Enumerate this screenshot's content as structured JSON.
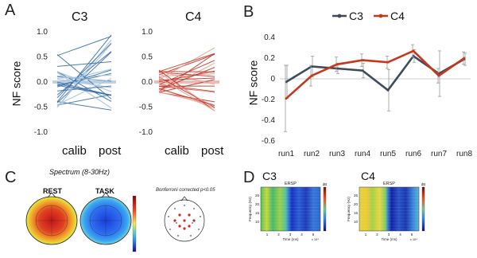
{
  "panels": {
    "a": {
      "letter": "A"
    },
    "b": {
      "letter": "B"
    },
    "c": {
      "letter": "C"
    },
    "d": {
      "letter": "D"
    }
  },
  "panel_a": {
    "ylabel": "NF score",
    "ticks": [
      "1.0",
      "0.5",
      "0.0",
      "-0.5",
      "-1.0"
    ],
    "xlabels": [
      "calib",
      "post"
    ],
    "subplots": [
      {
        "title": "C3",
        "color": "#3a6fa8",
        "light_color": "#a9c4e0"
      },
      {
        "title": "C4",
        "color": "#c0392b",
        "light_color": "#e8a89f"
      }
    ]
  },
  "panel_c": {
    "title": "Spectrum (8-30Hz)",
    "rest_label": "REST",
    "task_label": "TASK",
    "bonferroni_label": "Bonferroni corrected p<0.05"
  },
  "panel_d": {
    "maps": [
      {
        "title": "C3",
        "ersp": "ERSP",
        "ylabel": "Frequency (Hz)",
        "xlabel": "Time (ms)",
        "exp": "x 10⁴",
        "db": "dB",
        "yticks": [
          "25",
          "20",
          "15",
          "10"
        ],
        "xticks": [
          "1",
          "2",
          "3",
          "4",
          "5"
        ]
      },
      {
        "title": "C4",
        "ersp": "ERSP",
        "ylabel": "Frequency (Hz)",
        "xlabel": "Time (ms)",
        "exp": "x 10⁴",
        "db": "dB",
        "yticks": [
          "25",
          "20",
          "15",
          "10"
        ],
        "xticks": [
          "1",
          "2",
          "3",
          "4",
          "5"
        ]
      }
    ]
  },
  "chart_data": [
    {
      "type": "line",
      "panel": "B",
      "categories": [
        "run1",
        "run2",
        "run3",
        "run4",
        "run5",
        "run6",
        "run7",
        "run8"
      ],
      "ylabel": "NF score",
      "ylim": [
        -0.6,
        0.4
      ],
      "yticks": [
        "0.4",
        "0.2",
        "0",
        "-0.2",
        "-0.4",
        "-0.6"
      ],
      "legend": "top",
      "series": [
        {
          "name": "C3",
          "color": "#3f4b5c",
          "values": [
            -0.03,
            0.12,
            0.1,
            0.08,
            -0.11,
            0.22,
            0.05,
            0.19
          ],
          "err": [
            0.16,
            0.1,
            0.05,
            0.07,
            0.2,
            0.06,
            0.22,
            0.06
          ]
        },
        {
          "name": "C4",
          "color": "#c7371e",
          "values": [
            -0.19,
            0.03,
            0.14,
            0.18,
            0.16,
            0.27,
            0.03,
            0.2
          ],
          "err": [
            0.32,
            0.1,
            0.07,
            0.06,
            0.06,
            0.06,
            0.07,
            0.06
          ]
        }
      ]
    }
  ]
}
